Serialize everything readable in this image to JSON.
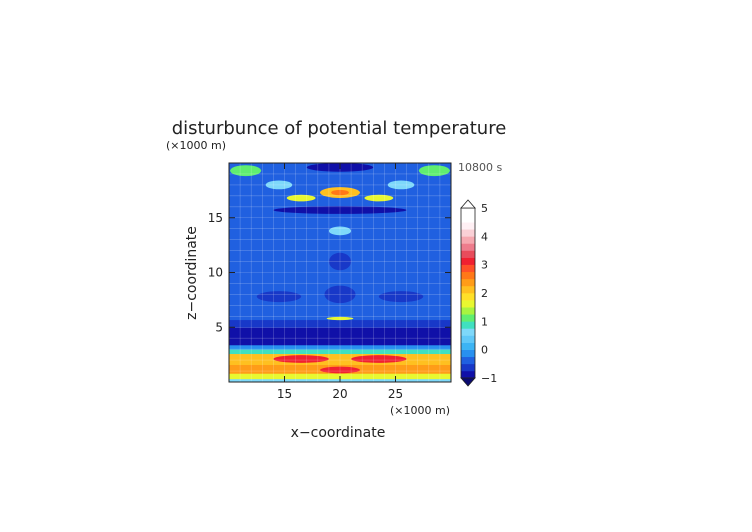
{
  "chart_data": {
    "type": "heatmap",
    "title": "disturbunce of potential temperature",
    "time_label": "10800 s",
    "xlabel": "x−coordinate",
    "ylabel": "z−coordinate",
    "x_unit": "(×1000 m)",
    "y_unit": "(×1000 m)",
    "xlim": [
      10,
      30
    ],
    "ylim": [
      0,
      20
    ],
    "x_ticks": [
      15,
      20,
      25
    ],
    "y_ticks": [
      5,
      10,
      15
    ],
    "colorbar": {
      "min": -1,
      "max": 5,
      "step": 0.25,
      "tick_labels": [
        "-1",
        "0",
        "1",
        "2",
        "3",
        "4",
        "5"
      ],
      "tick_values": [
        -1,
        0,
        1,
        2,
        3,
        4,
        5
      ]
    },
    "grid": true,
    "layers": [
      {
        "z": [
          0.0,
          0.3
        ],
        "value": 0.5
      },
      {
        "z": [
          0.3,
          0.8
        ],
        "value": 1.6
      },
      {
        "z": [
          0.8,
          1.6
        ],
        "value": 2.3
      },
      {
        "z": [
          1.6,
          2.6
        ],
        "value": 2.1
      },
      {
        "z": [
          2.6,
          3.0
        ],
        "value": 0.8
      },
      {
        "z": [
          3.0,
          3.4
        ],
        "value": -0.1
      },
      {
        "z": [
          3.4,
          5.0
        ],
        "value": -0.9
      },
      {
        "z": [
          5.0,
          5.7
        ],
        "value": -0.55
      },
      {
        "z": [
          5.7,
          20.0
        ],
        "value": -0.3
      }
    ],
    "features": [
      {
        "x": 20,
        "z": 17.3,
        "rx": 1.8,
        "rz": 0.5,
        "value": 2.0
      },
      {
        "x": 20,
        "z": 17.3,
        "rx": 0.8,
        "rz": 0.25,
        "value": 2.5
      },
      {
        "x": 16.5,
        "z": 16.8,
        "rx": 1.3,
        "rz": 0.3,
        "value": 1.6
      },
      {
        "x": 23.5,
        "z": 16.8,
        "rx": 1.3,
        "rz": 0.3,
        "value": 1.6
      },
      {
        "x": 14.5,
        "z": 18.0,
        "rx": 1.2,
        "rz": 0.4,
        "value": 0.7
      },
      {
        "x": 25.5,
        "z": 18.0,
        "rx": 1.2,
        "rz": 0.4,
        "value": 0.7
      },
      {
        "x": 11.5,
        "z": 19.3,
        "rx": 1.4,
        "rz": 0.5,
        "value": 1.0
      },
      {
        "x": 28.5,
        "z": 19.3,
        "rx": 1.4,
        "rz": 0.5,
        "value": 1.0
      },
      {
        "x": 20,
        "z": 19.6,
        "rx": 3.0,
        "rz": 0.4,
        "value": -0.9
      },
      {
        "x": 20,
        "z": 15.7,
        "rx": 6.0,
        "rz": 0.35,
        "value": -0.8
      },
      {
        "x": 20,
        "z": 13.8,
        "rx": 1.0,
        "rz": 0.4,
        "value": 0.6
      },
      {
        "x": 20,
        "z": 11.0,
        "rx": 1.0,
        "rz": 0.8,
        "value": -0.55
      },
      {
        "x": 20,
        "z": 8.0,
        "rx": 1.4,
        "rz": 0.8,
        "value": -0.55
      },
      {
        "x": 14.5,
        "z": 7.8,
        "rx": 2.0,
        "rz": 0.5,
        "value": -0.55
      },
      {
        "x": 25.5,
        "z": 7.8,
        "rx": 2.0,
        "rz": 0.5,
        "value": -0.55
      },
      {
        "x": 20,
        "z": 5.8,
        "rx": 1.2,
        "rz": 0.15,
        "value": 1.6
      },
      {
        "x": 16.5,
        "z": 2.1,
        "rx": 2.5,
        "rz": 0.35,
        "value": 3.0
      },
      {
        "x": 23.5,
        "z": 2.1,
        "rx": 2.5,
        "rz": 0.35,
        "value": 3.0
      },
      {
        "x": 20,
        "z": 1.1,
        "rx": 1.8,
        "rz": 0.3,
        "value": 3.1
      }
    ]
  }
}
